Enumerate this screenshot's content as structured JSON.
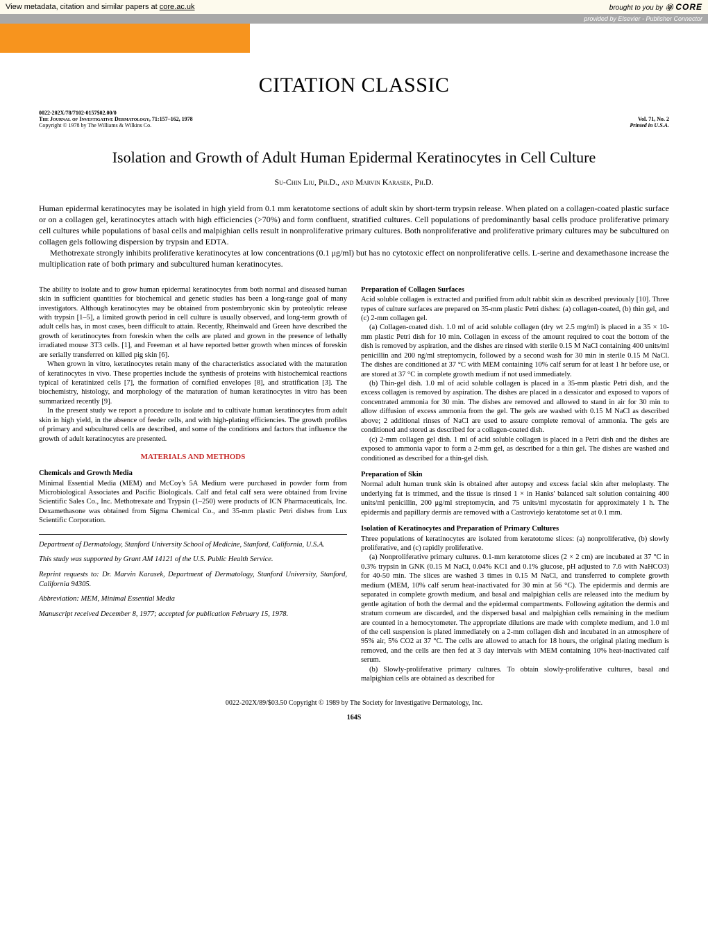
{
  "banner": {
    "left_text": "View metadata, citation and similar papers at ",
    "core_link": "core.ac.uk",
    "brought_by": "brought to you by ",
    "core_logo": "CORE",
    "provided_by": "provided by Elsevier - Publisher Connector"
  },
  "header": {
    "citation_classic": "CITATION CLASSIC",
    "code": "0022-202X/78/7102-0157$02.00/0",
    "journal": "The Journal of Investigative Dermatology, 71:157–162, 1978",
    "vol": "Vol. 71, No. 2",
    "copyright": "Copyright © 1978 by The Williams & Wilkins Co.",
    "printed": "Printed in U.S.A."
  },
  "title": "Isolation and Growth of Adult Human Epidermal Keratinocytes in Cell Culture",
  "authors": "Su-Chin Liu, Ph.D., and Marvin Karasek, Ph.D.",
  "abstract": {
    "p1": "Human epidermal keratinocytes may be isolated in high yield from 0.1 mm keratotome sections of adult skin by short-term trypsin release. When plated on a collagen-coated plastic surface or on a collagen gel, keratinocytes attach with high efficiencies (>70%) and form confluent, stratified cultures. Cell populations of predominantly basal cells produce proliferative primary cell cultures while populations of basal cells and malpighian cells result in nonproliferative primary cultures. Both nonproliferative and proliferative primary cultures may be subcultured on collagen gels following dispersion by trypsin and EDTA.",
    "p2": "Methotrexate strongly inhibits proliferative keratinocytes at low concentrations (0.1 μg/ml) but has no cytotoxic effect on nonproliferative cells. L-serine and dexamethasone increase the multiplication rate of both primary and subcultured human keratinocytes."
  },
  "left_col": {
    "p1": "The ability to isolate and to grow human epidermal keratinocytes from both normal and diseased human skin in sufficient quantities for biochemical and genetic studies has been a long-range goal of many investigators. Although keratinocytes may be obtained from postembryonic skin by proteolytic release with trypsin [1–5], a limited growth period in cell culture is usually observed, and long-term growth of adult cells has, in most cases, been difficult to attain. Recently, Rheinwald and Green have described the growth of keratinocytes from foreskin when the cells are plated and grown in the presence of lethally irradiated mouse 3T3 cells. [1], and Freeman et al have reported better growth when minces of foreskin are serially transferred on killed pig skin [6].",
    "p2": "When grown in vitro, keratinocytes retain many of the characteristics associated with the maturation of keratinocytes in vivo. These properties include the synthesis of proteins with histochemical reactions typical of keratinized cells [7], the formation of cornified envelopes [8], and stratification [3]. The biochemistry, histology, and morphology of the maturation of human keratinocytes in vitro has been summarized recently [9].",
    "p3": "In the present study we report a procedure to isolate and to cultivate human keratinocytes from adult skin in high yield, in the absence of feeder cells, and with high-plating efficiencies. The growth profiles of primary and subcultured cells are described, and some of the conditions and factors that influence the growth of adult keratinocytes are presented.",
    "materials": "MATERIALS AND METHODS",
    "chem_h": "Chemicals and Growth Media",
    "chem_p": "Minimal Essential Media (MEM) and McCoy's 5A Medium were purchased in powder form from Microbiological Associates and Pacific Biologicals. Calf and fetal calf sera were obtained from Irvine Scientific Sales Co., Inc. Methotrexate and Trypsin (1–250) were products of ICN Pharmaceuticals, Inc. Dexamethasone was obtained from Sigma Chemical Co., and 35-mm plastic Petri dishes from Lux Scientific Corporation.",
    "fn1": "Department of Dermatology, Stanford University School of Medicine, Stanford, California, U.S.A.",
    "fn2": "This study was supported by Grant AM 14121 of the U.S. Public Health Service.",
    "fn3": "Reprint requests to: Dr. Marvin Karasek, Department of Dermatology, Stanford University, Stanford, California 94305.",
    "fn4": "Abbreviation: MEM, Minimal Essential Media",
    "fn5": "Manuscript received December 8, 1977; accepted for publication February 15, 1978."
  },
  "right_col": {
    "prep_h": "Preparation of Collagen Surfaces",
    "prep_p1": "Acid soluble collagen is extracted and purified from adult rabbit skin as described previously [10]. Three types of culture surfaces are prepared on 35-mm plastic Petri dishes: (a) collagen-coated, (b) thin gel, and (c) 2-mm collagen gel.",
    "prep_p2": "(a) Collagen-coated dish. 1.0 ml of acid soluble collagen (dry wt 2.5 mg/ml) is placed in a 35 × 10-mm plastic Petri dish for 10 min. Collagen in excess of the amount required to coat the bottom of the dish is removed by aspiration, and the dishes are rinsed with sterile 0.15 M NaCl containing 400 units/ml penicillin and 200 ng/ml streptomycin, followed by a second wash for 30 min in sterile 0.15 M NaCl. The dishes are conditioned at 37 °C with MEM containing 10% calf serum for at least 1 hr before use, or are stored at 37 °C in complete growth medium if not used immediately.",
    "prep_p3": "(b) Thin-gel dish. 1.0 ml of acid soluble collagen is placed in a 35-mm plastic Petri dish, and the excess collagen is removed by aspiration. The dishes are placed in a dessicator and exposed to vapors of concentrated ammonia for 30 min. The dishes are removed and allowed to stand in air for 30 min to allow diffusion of excess ammonia from the gel. The gels are washed with 0.15 M NaCl as described above; 2 additional rinses of NaCl are used to assure complete removal of ammonia. The gels are conditioned and stored as described for a collagen-coated dish.",
    "prep_p4": "(c) 2-mm collagen gel dish. 1 ml of acid soluble collagen is placed in a Petri dish and the dishes are exposed to ammonia vapor to form a 2-mm gel, as described for a thin gel. The dishes are washed and conditioned as described for a thin-gel dish.",
    "skin_h": "Preparation of Skin",
    "skin_p": "Normal adult human trunk skin is obtained after autopsy and excess facial skin after meloplasty. The underlying fat is trimmed, and the tissue is rinsed 1 ×  in Hanks' balanced salt solution containing 400 units/ml penicillin, 200 μg/ml streptomycin, and 75 units/ml mycostatin for approximately 1 h. The epidermis and papillary dermis are removed with a Castroviejo keratotome set at 0.1 mm.",
    "iso_h": "Isolation of Keratinocytes and Preparation of Primary Cultures",
    "iso_p1": "Three populations of keratinocytes are isolated from keratotome slices: (a) nonproliferative, (b) slowly proliferative, and (c) rapidly proliferative.",
    "iso_p2": "(a) Nonproliferative primary cultures. 0.1-mm keratotome slices (2 × 2 cm) are incubated at 37 °C in 0.3% trypsin in GNK (0.15 M NaCl, 0.04% KC1 and 0.1% glucose, pH adjusted to 7.6 with NaHCO3) for 40-50 min. The slices are washed 3 times in 0.15 M NaCl, and transferred to complete growth medium (MEM, 10% calf serum heat-inactivated for 30 min at 56 °C). The epidermis and dermis are separated in complete growth medium, and basal and malpighian cells are released into the medium by gentle agitation of both the dermal and the epidermal compartments. Following agitation the dermis and stratum corneum are discarded, and the dispersed basal and malpighian cells remaining in the medium are counted in a hemocytometer. The appropriate dilutions are made with complete medium, and 1.0 ml of the cell suspension is plated immediately on a 2-mm collagen dish and incubated in an atmosphere of 95% air, 5% CO2 at 37 °C. The cells are allowed to attach for 18 hours, the original plating medium is removed, and the cells are then fed at 3 day intervals with MEM containing 10% heat-inactivated calf serum.",
    "iso_p3": "(b) Slowly-proliferative primary cultures. To obtain slowly-proliferative cultures, basal and malpighian cells are obtained as described for"
  },
  "footer": {
    "copyright": "0022-202X/89/$03.50   Copyright © 1989 by The Society for Investigative Dermatology, Inc.",
    "pagenum": "164S"
  },
  "colors": {
    "orange": "#f7941e",
    "banner_bg": "#fdfaed",
    "provided_bg": "#a8a8a8",
    "red_heading": "#c62828"
  }
}
